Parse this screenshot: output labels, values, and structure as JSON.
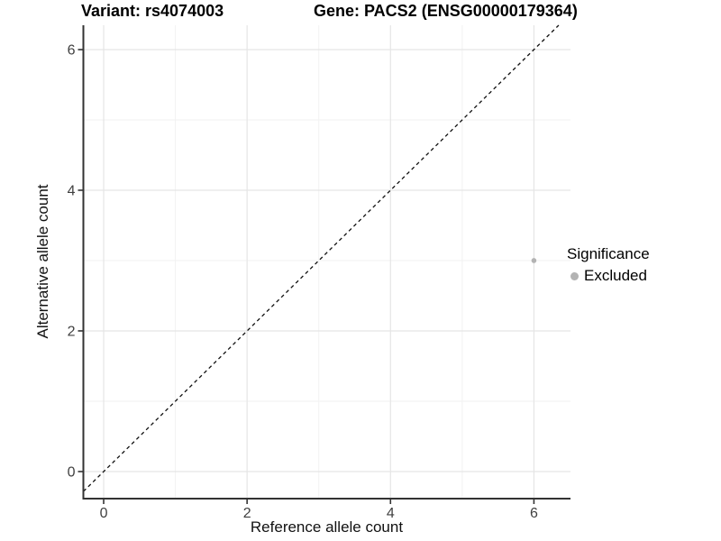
{
  "titles": {
    "variant": "Variant: rs4074003",
    "gene": "Gene: PACS2 (ENSG00000179364)"
  },
  "chart_data": {
    "type": "scatter",
    "title": "Variant: rs4074003   Gene: PACS2 (ENSG00000179364)",
    "xlabel": "Reference allele count",
    "ylabel": "Alternative allele count",
    "xlim": [
      -0.283,
      6.51
    ],
    "ylim": [
      -0.385,
      6.346
    ],
    "x_ticks": [
      0,
      2,
      4,
      6
    ],
    "y_ticks": [
      0,
      2,
      4,
      6
    ],
    "x_minor_ticks": [
      1,
      3,
      5
    ],
    "y_minor_ticks": [
      1,
      3,
      5
    ],
    "grid": true,
    "reference_line": {
      "type": "identity",
      "style": "dashed",
      "color": "#111111"
    },
    "series": [
      {
        "name": "Excluded",
        "color": "#b3b3b3",
        "points": [
          {
            "x": 6,
            "y": 3
          }
        ]
      }
    ],
    "legend": {
      "title": "Significance",
      "position": "right",
      "entries": [
        {
          "label": "Excluded",
          "color": "#b3b3b3"
        }
      ]
    },
    "colors": {
      "grid_major": "#e5e5e5",
      "grid_minor": "#f2f2f2",
      "axis": "#333333",
      "tick_label": "#404040",
      "background": "#ffffff"
    }
  }
}
